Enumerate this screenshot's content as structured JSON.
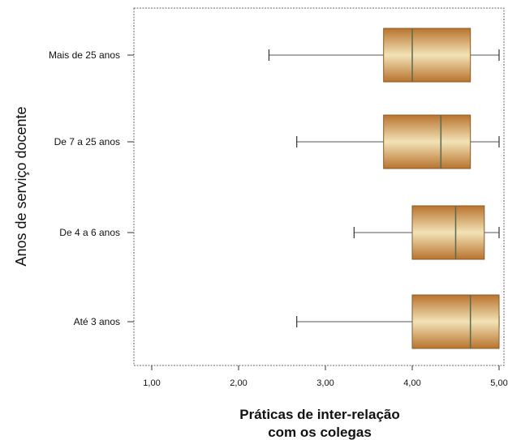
{
  "chart_data": {
    "type": "boxplot",
    "orientation": "horizontal",
    "ylabel": "Anos de serviço docente",
    "xlabel_lines": [
      "Práticas de inter-relação",
      "com os colegas"
    ],
    "xlim": [
      0.8,
      5.05
    ],
    "xticks": [
      1.0,
      2.0,
      3.0,
      4.0,
      5.0
    ],
    "xtick_labels": [
      "1,00",
      "2,00",
      "3,00",
      "4,00",
      "5,00"
    ],
    "grid": false,
    "categories": [
      "Mais de 25 anos",
      "De 7 a 25 anos",
      "De 4 a 6 anos",
      "Até 3 anos"
    ],
    "boxes": [
      {
        "category": "Mais de 25 anos",
        "min": 2.35,
        "q1": 3.67,
        "median": 4.0,
        "q3": 4.67,
        "max": 5.0
      },
      {
        "category": "De 7 a 25 anos",
        "min": 2.67,
        "q1": 3.67,
        "median": 4.33,
        "q3": 4.67,
        "max": 5.0
      },
      {
        "category": "De 4 a 6 anos",
        "min": 3.33,
        "q1": 4.0,
        "median": 4.5,
        "q3": 4.83,
        "max": 5.0
      },
      {
        "category": "Até 3 anos",
        "min": 2.67,
        "q1": 4.0,
        "median": 4.67,
        "q3": 5.0,
        "max": 5.0
      }
    ],
    "colors": {
      "box_dark": "#b8742e",
      "box_light": "#f2e2b6",
      "median": "#5a6a50",
      "whisker": "#555555",
      "frame": "#666666"
    }
  }
}
